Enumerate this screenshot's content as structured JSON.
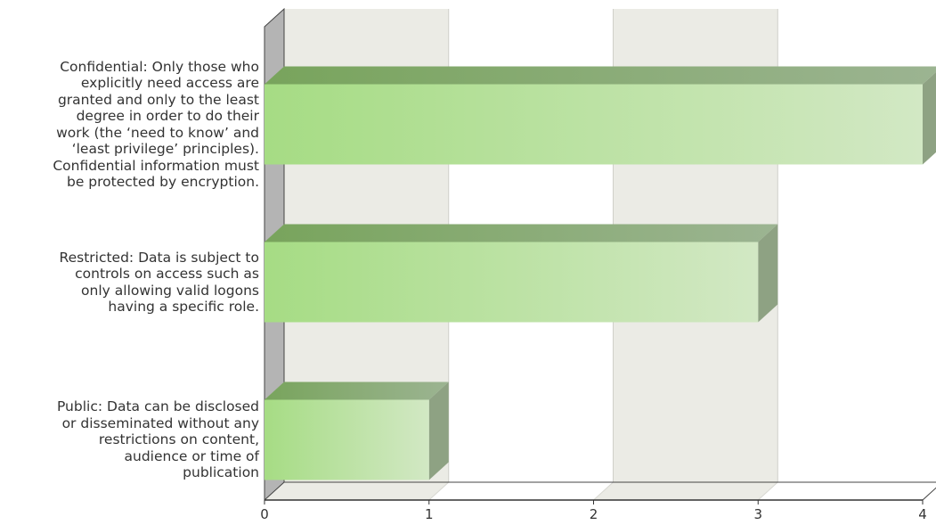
{
  "chart_data": {
    "type": "bar",
    "orientation": "horizontal",
    "categories": [
      [
        "Confidential: Only those who",
        "explicitly need access are",
        "granted and only to the least",
        "degree in order to do their",
        "work (the ‘need to know’ and",
        "‘least privilege’ principles).",
        "Confidential information must",
        "be protected by encryption."
      ],
      [
        "Restricted: Data is subject to",
        "controls on access such as",
        "only allowing valid logons",
        "having a specific role."
      ],
      [
        "Public: Data can be disclosed",
        "or disseminated without any",
        "restrictions on content,",
        "audience or time of",
        "publication"
      ]
    ],
    "values": [
      4,
      3,
      1
    ],
    "xlim": [
      0,
      4
    ],
    "xticks": [
      "0",
      "1",
      "2",
      "3",
      "4"
    ],
    "grid": true,
    "bar_color": "#a8d888"
  }
}
